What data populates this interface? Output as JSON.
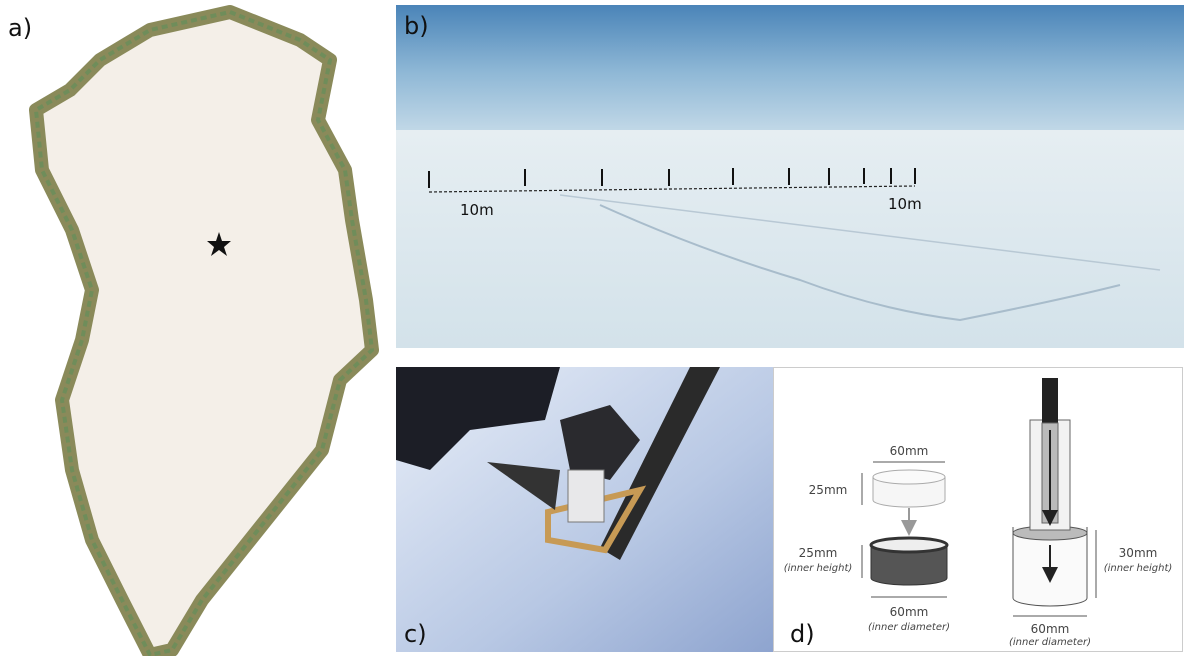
{
  "panels": {
    "a": {
      "label": "a)"
    },
    "b": {
      "label": "b)",
      "scale_labels": [
        "10m",
        "10m"
      ]
    },
    "c": {
      "label": "c)"
    },
    "d": {
      "label": "d)",
      "sample": {
        "diameter": "60mm",
        "height": "25mm"
      },
      "cutter": {
        "height": "25mm",
        "height_note": "(inner height)",
        "diameter": "60mm",
        "diameter_note": "(inner diameter)"
      },
      "tube": {
        "height": "30mm",
        "height_note": "(inner height)",
        "diameter": "60mm",
        "diameter_note": "(inner diameter)"
      }
    }
  }
}
